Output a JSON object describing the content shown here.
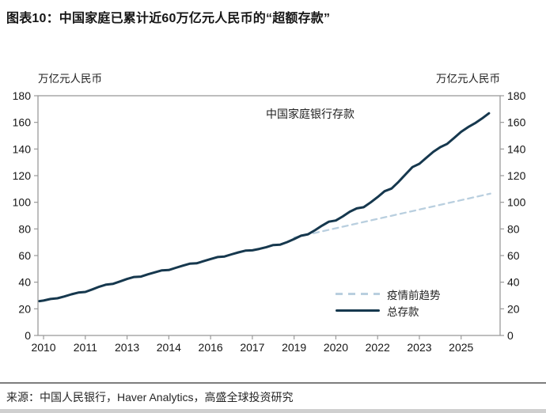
{
  "title": "图表10：中国家庭已累计近60万亿元人民币的“超额存款”",
  "source": "来源：中国人民银行，Haver Analytics，高盛全球投资研究",
  "axis_unit": "万亿元人民币",
  "annotation": "中国家庭银行存款",
  "chart_data": {
    "type": "line",
    "title": "中国家庭银行存款",
    "ylabel": "万亿元人民币",
    "xlabel": "",
    "ylim": [
      0,
      180
    ],
    "xlim": [
      2009.8,
      2026.4
    ],
    "grid": false,
    "legend_position": "lower-right",
    "y_ticks": [
      0,
      20,
      40,
      60,
      80,
      100,
      120,
      140,
      160,
      180
    ],
    "y_tick_sides": "both",
    "x_ticks": [
      {
        "pos": 2010,
        "label": "2010"
      },
      {
        "pos": 2011.5,
        "label": "2011"
      },
      {
        "pos": 2013,
        "label": "2013"
      },
      {
        "pos": 2014.5,
        "label": "2014"
      },
      {
        "pos": 2016,
        "label": "2016"
      },
      {
        "pos": 2017.5,
        "label": "2017"
      },
      {
        "pos": 2019,
        "label": "2019"
      },
      {
        "pos": 2020.5,
        "label": "2020"
      },
      {
        "pos": 2022,
        "label": "2022"
      },
      {
        "pos": 2023.5,
        "label": "2023"
      },
      {
        "pos": 2025,
        "label": "2025"
      }
    ],
    "series": [
      {
        "id": "pre-covid-trend",
        "name": "疫情前趋势",
        "style": "dashed",
        "color": "#b9cfdf",
        "points": [
          [
            2019.0,
            73.5
          ],
          [
            2026.05,
            106.5
          ]
        ]
      },
      {
        "id": "total-deposits",
        "name": "总存款",
        "style": "solid",
        "color": "#16384e",
        "points": [
          [
            2009.85,
            25.8
          ],
          [
            2010.0,
            26.2
          ],
          [
            2010.25,
            27.4
          ],
          [
            2010.5,
            27.9
          ],
          [
            2010.75,
            29.3
          ],
          [
            2011.0,
            30.9
          ],
          [
            2011.25,
            32.2
          ],
          [
            2011.5,
            32.7
          ],
          [
            2011.75,
            34.6
          ],
          [
            2012.0,
            36.6
          ],
          [
            2012.25,
            38.2
          ],
          [
            2012.5,
            38.8
          ],
          [
            2012.75,
            40.6
          ],
          [
            2013.0,
            42.4
          ],
          [
            2013.25,
            43.9
          ],
          [
            2013.5,
            44.2
          ],
          [
            2013.75,
            45.9
          ],
          [
            2014.0,
            47.4
          ],
          [
            2014.25,
            48.9
          ],
          [
            2014.5,
            49.1
          ],
          [
            2014.75,
            50.8
          ],
          [
            2015.0,
            52.4
          ],
          [
            2015.25,
            53.9
          ],
          [
            2015.5,
            54.2
          ],
          [
            2015.75,
            55.8
          ],
          [
            2016.0,
            57.4
          ],
          [
            2016.25,
            58.9
          ],
          [
            2016.5,
            59.3
          ],
          [
            2016.75,
            60.9
          ],
          [
            2017.0,
            62.4
          ],
          [
            2017.25,
            63.7
          ],
          [
            2017.5,
            63.9
          ],
          [
            2017.75,
            65.0
          ],
          [
            2018.0,
            66.3
          ],
          [
            2018.25,
            67.9
          ],
          [
            2018.5,
            68.2
          ],
          [
            2018.75,
            70.1
          ],
          [
            2019.0,
            72.4
          ],
          [
            2019.25,
            74.9
          ],
          [
            2019.5,
            76.0
          ],
          [
            2019.75,
            79.0
          ],
          [
            2020.0,
            82.4
          ],
          [
            2020.25,
            85.4
          ],
          [
            2020.5,
            86.3
          ],
          [
            2020.75,
            89.4
          ],
          [
            2021.0,
            92.9
          ],
          [
            2021.25,
            95.4
          ],
          [
            2021.5,
            96.3
          ],
          [
            2021.75,
            99.9
          ],
          [
            2022.0,
            103.9
          ],
          [
            2022.25,
            108.3
          ],
          [
            2022.5,
            110.3
          ],
          [
            2022.75,
            115.3
          ],
          [
            2023.0,
            120.9
          ],
          [
            2023.25,
            126.4
          ],
          [
            2023.5,
            128.9
          ],
          [
            2023.75,
            133.4
          ],
          [
            2024.0,
            137.9
          ],
          [
            2024.25,
            141.4
          ],
          [
            2024.5,
            143.9
          ],
          [
            2024.75,
            148.4
          ],
          [
            2025.0,
            152.9
          ],
          [
            2025.25,
            156.4
          ],
          [
            2025.5,
            159.4
          ],
          [
            2025.75,
            162.9
          ],
          [
            2026.0,
            166.8
          ]
        ]
      }
    ]
  },
  "colors": {
    "axis": "#9a9a9a",
    "text": "#161616",
    "divider": "#7d7d7d"
  }
}
